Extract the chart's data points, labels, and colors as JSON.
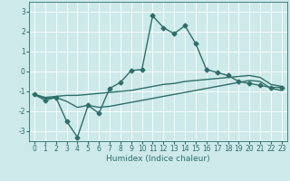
{
  "xlabel": "Humidex (Indice chaleur)",
  "ylabel": "",
  "background_color": "#cde9e9",
  "grid_color": "#ffffff",
  "line_color": "#2d6e6a",
  "xlim": [
    -0.5,
    23.5
  ],
  "ylim": [
    -3.5,
    3.5
  ],
  "xtick_labels": [
    "0",
    "1",
    "2",
    "3",
    "4",
    "5",
    "6",
    "7",
    "8",
    "9",
    "10",
    "11",
    "12",
    "13",
    "14",
    "15",
    "16",
    "17",
    "18",
    "19",
    "20",
    "21",
    "22",
    "23"
  ],
  "yticks": [
    -3,
    -2,
    -1,
    0,
    1,
    2,
    3
  ],
  "series1_x": [
    0,
    1,
    2,
    3,
    4,
    5,
    6,
    7,
    8,
    9,
    10,
    11,
    12,
    13,
    14,
    15,
    16,
    17,
    18,
    19,
    20,
    21,
    22,
    23
  ],
  "series1_y": [
    -1.15,
    -1.45,
    -1.3,
    -2.5,
    -3.3,
    -1.7,
    -2.1,
    -0.85,
    -0.55,
    0.05,
    0.1,
    2.8,
    2.2,
    1.9,
    2.3,
    1.4,
    0.1,
    -0.05,
    -0.2,
    -0.5,
    -0.6,
    -0.7,
    -0.8,
    -0.8
  ],
  "series2_x": [
    0,
    1,
    2,
    3,
    4,
    5,
    6,
    7,
    8,
    9,
    10,
    11,
    12,
    13,
    14,
    15,
    16,
    17,
    18,
    19,
    20,
    21,
    22,
    23
  ],
  "series2_y": [
    -1.15,
    -1.3,
    -1.25,
    -1.2,
    -1.2,
    -1.15,
    -1.1,
    -1.05,
    -1.0,
    -0.95,
    -0.85,
    -0.75,
    -0.65,
    -0.6,
    -0.5,
    -0.45,
    -0.4,
    -0.35,
    -0.3,
    -0.25,
    -0.2,
    -0.3,
    -0.65,
    -0.75
  ],
  "series3_x": [
    0,
    1,
    2,
    3,
    4,
    5,
    6,
    7,
    8,
    9,
    10,
    11,
    12,
    13,
    14,
    15,
    16,
    17,
    18,
    19,
    20,
    21,
    22,
    23
  ],
  "series3_y": [
    -1.15,
    -1.35,
    -1.3,
    -1.5,
    -1.8,
    -1.7,
    -1.8,
    -1.75,
    -1.65,
    -1.55,
    -1.45,
    -1.35,
    -1.25,
    -1.15,
    -1.05,
    -0.95,
    -0.85,
    -0.75,
    -0.65,
    -0.55,
    -0.45,
    -0.5,
    -0.85,
    -0.95
  ],
  "marker": "D",
  "markersize": 2.5,
  "linewidth": 1.0,
  "tick_fontsize": 5.5,
  "xlabel_fontsize": 6.5
}
